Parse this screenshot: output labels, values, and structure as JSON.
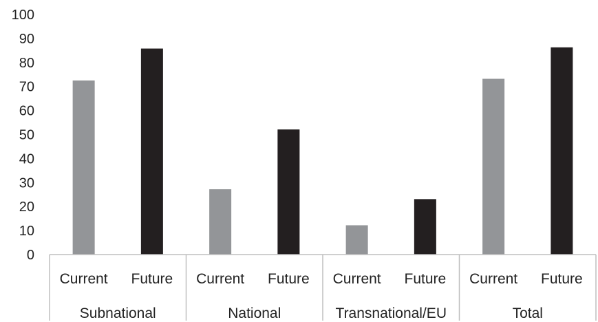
{
  "chart_data": {
    "type": "bar",
    "groups": [
      "Subnational",
      "National",
      "Transnational/EU",
      "Total"
    ],
    "categories": [
      "Current",
      "Future"
    ],
    "series": [
      {
        "group": "Subnational",
        "values": [
          72.5,
          85.8
        ]
      },
      {
        "group": "National",
        "values": [
          27.2,
          52.1
        ]
      },
      {
        "group": "Transnational/EU",
        "values": [
          12.2,
          23.1
        ]
      },
      {
        "group": "Total",
        "values": [
          73.2,
          86.3
        ]
      }
    ],
    "ylim": [
      0,
      100
    ],
    "yticks": [
      0,
      10,
      20,
      30,
      40,
      50,
      60,
      70,
      80,
      90,
      100
    ],
    "grid": false,
    "colors": {
      "Current": "#939598",
      "Future": "#231f20",
      "axis": "#bfbfbf"
    }
  }
}
